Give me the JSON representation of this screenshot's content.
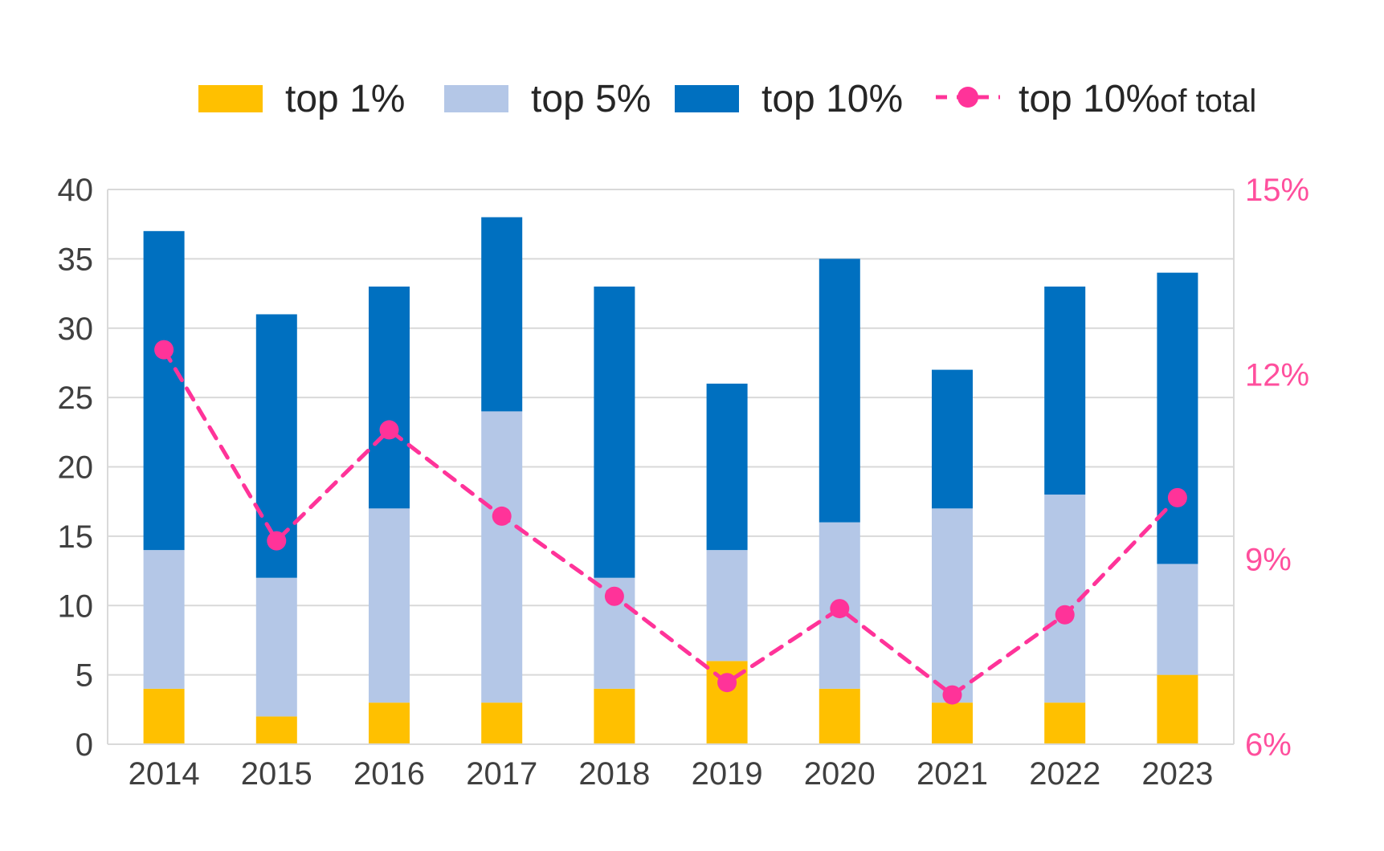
{
  "chart_data": {
    "type": "bar",
    "stacked": true,
    "categories": [
      "2014",
      "2015",
      "2016",
      "2017",
      "2018",
      "2019",
      "2020",
      "2021",
      "2022",
      "2023"
    ],
    "series": [
      {
        "name": "top 1%",
        "type": "bar",
        "axis": "left",
        "color": "#ffc000",
        "values": [
          4,
          2,
          3,
          3,
          4,
          6,
          4,
          3,
          3,
          5
        ]
      },
      {
        "name": "top 5%",
        "type": "bar",
        "axis": "left",
        "color": "#b4c7e7",
        "values": [
          10,
          10,
          14,
          21,
          8,
          8,
          12,
          14,
          15,
          8
        ]
      },
      {
        "name": "top 10%",
        "type": "bar",
        "axis": "left",
        "color": "#0070c0",
        "values": [
          23,
          19,
          16,
          14,
          21,
          12,
          19,
          10,
          15,
          21
        ]
      },
      {
        "name": "top 10%",
        "name_suffix": "of total",
        "type": "line",
        "axis": "right",
        "color": "#ff3399",
        "line_style": "dashed",
        "marker": "circle",
        "values": [
          0.124,
          0.093,
          0.111,
          0.097,
          0.084,
          0.07,
          0.082,
          0.068,
          0.081,
          0.1
        ]
      }
    ],
    "y_left": {
      "min": 0,
      "max": 40,
      "ticks": [
        0,
        5,
        10,
        15,
        20,
        25,
        30,
        35,
        40
      ],
      "tick_labels": [
        "0",
        "5",
        "10",
        "15",
        "20",
        "25",
        "30",
        "35",
        "40"
      ]
    },
    "y_right": {
      "min": 0.06,
      "max": 0.15,
      "ticks": [
        0.06,
        0.09,
        0.12,
        0.15
      ],
      "tick_labels": [
        "6%",
        "9%",
        "12%",
        "15%"
      ],
      "color": "#ff4f9d"
    },
    "grid": "horizontal",
    "legend_position": "top"
  }
}
